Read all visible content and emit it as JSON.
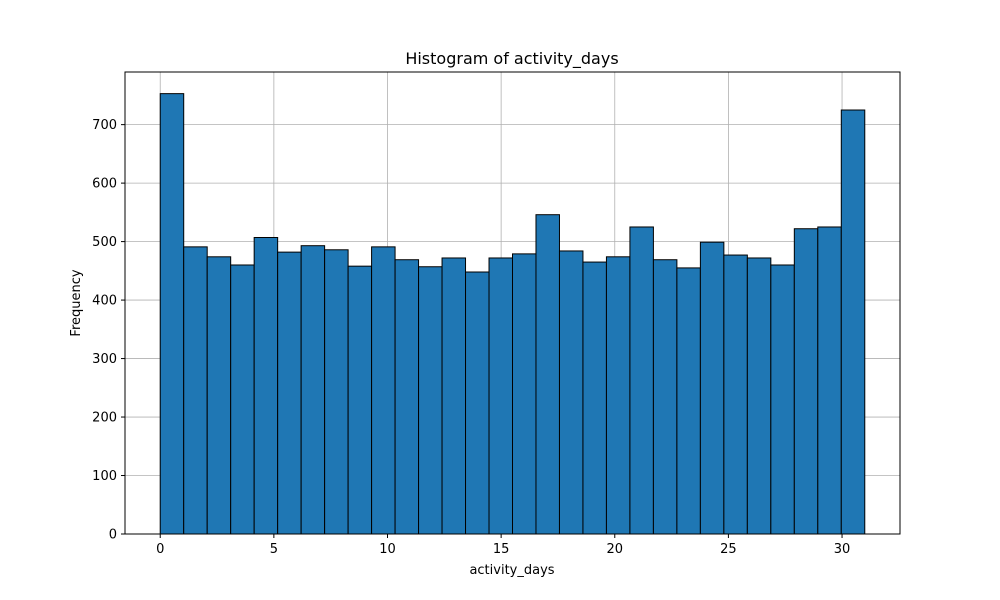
{
  "chart_data": {
    "type": "bar",
    "title": "Histogram of activity_days",
    "xlabel": "activity_days",
    "ylabel": "Frequency",
    "xlim": [
      -1.55,
      32.55
    ],
    "ylim": [
      0,
      790
    ],
    "grid": true,
    "bar_color": "#1f77b4",
    "edge_color": "#000000",
    "bin_edges": [
      0,
      1.0333,
      2.0667,
      3.1,
      4.1333,
      5.1667,
      6.2,
      7.2333,
      8.2667,
      9.3,
      10.3333,
      11.3667,
      12.4,
      13.4333,
      14.4667,
      15.5,
      16.5333,
      17.5667,
      18.6,
      19.6333,
      20.6667,
      21.7,
      22.7333,
      23.7667,
      24.8,
      25.8333,
      26.8667,
      27.9,
      28.9333,
      29.9667,
      31
    ],
    "values": [
      753,
      491,
      474,
      460,
      507,
      482,
      493,
      486,
      458,
      491,
      469,
      457,
      472,
      448,
      472,
      479,
      546,
      484,
      465,
      474,
      525,
      469,
      455,
      499,
      477,
      472,
      460,
      522,
      525,
      725
    ],
    "x_ticks": [
      {
        "value": 0,
        "label": "0"
      },
      {
        "value": 5,
        "label": "5"
      },
      {
        "value": 10,
        "label": "10"
      },
      {
        "value": 15,
        "label": "15"
      },
      {
        "value": 20,
        "label": "20"
      },
      {
        "value": 25,
        "label": "25"
      },
      {
        "value": 30,
        "label": "30"
      }
    ],
    "y_ticks": [
      {
        "value": 0,
        "label": "0"
      },
      {
        "value": 100,
        "label": "100"
      },
      {
        "value": 200,
        "label": "200"
      },
      {
        "value": 300,
        "label": "300"
      },
      {
        "value": 400,
        "label": "400"
      },
      {
        "value": 500,
        "label": "500"
      },
      {
        "value": 600,
        "label": "600"
      },
      {
        "value": 700,
        "label": "700"
      }
    ]
  }
}
